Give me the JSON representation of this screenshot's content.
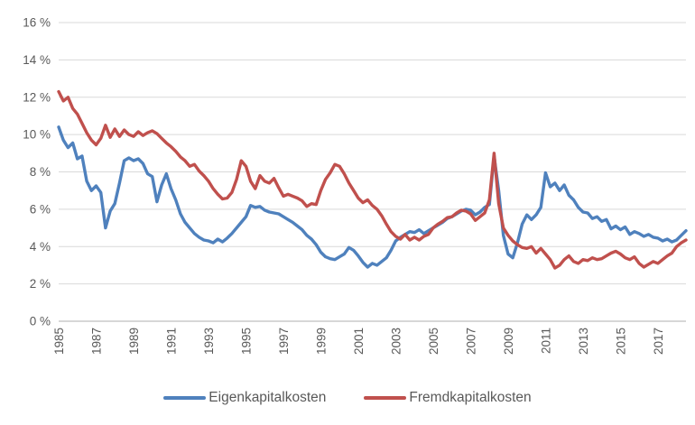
{
  "chart_data": {
    "type": "line",
    "title": "",
    "xlabel": "",
    "ylabel": "",
    "grid": "horizontal",
    "legend_position": "bottom",
    "y_axis": {
      "min": 0,
      "max": 16,
      "step": 2,
      "tick_labels": [
        "0 %",
        "2 %",
        "4 %",
        "6 %",
        "8 %",
        "10 %",
        "12 %",
        "14 %",
        "16 %"
      ]
    },
    "x_axis": {
      "start": 1985.0,
      "step_per_point": 0.25,
      "end": 2018.5,
      "tick_years": [
        1985,
        1987,
        1989,
        1991,
        1993,
        1995,
        1997,
        1999,
        2001,
        2003,
        2005,
        2007,
        2009,
        2011,
        2013,
        2015,
        2017
      ],
      "tick_labels": [
        "1985",
        "1987",
        "1989",
        "1991",
        "1993",
        "1995",
        "1997",
        "1999",
        "2001",
        "2003",
        "2005",
        "2007",
        "2009",
        "2011",
        "2013",
        "2015",
        "2017"
      ]
    },
    "series": [
      {
        "name": "Eigenkapitalkosten",
        "color": "#4F81BD",
        "values": [
          10.4,
          9.7,
          9.3,
          9.55,
          8.7,
          8.85,
          7.5,
          7.0,
          7.25,
          6.9,
          5.0,
          5.9,
          6.3,
          7.4,
          8.6,
          8.75,
          8.6,
          8.7,
          8.45,
          7.9,
          7.75,
          6.4,
          7.3,
          7.9,
          7.1,
          6.5,
          5.75,
          5.3,
          5.0,
          4.7,
          4.5,
          4.35,
          4.3,
          4.2,
          4.4,
          4.25,
          4.45,
          4.7,
          5.0,
          5.3,
          5.6,
          6.2,
          6.1,
          6.15,
          5.95,
          5.85,
          5.8,
          5.75,
          5.6,
          5.45,
          5.3,
          5.1,
          4.9,
          4.6,
          4.4,
          4.1,
          3.7,
          3.45,
          3.35,
          3.3,
          3.45,
          3.6,
          3.95,
          3.8,
          3.5,
          3.15,
          2.9,
          3.1,
          3.0,
          3.2,
          3.4,
          3.8,
          4.3,
          4.5,
          4.65,
          4.8,
          4.75,
          4.9,
          4.7,
          4.85,
          5.0,
          5.15,
          5.3,
          5.5,
          5.6,
          5.75,
          5.9,
          6.0,
          5.95,
          5.7,
          5.85,
          6.1,
          6.25,
          8.85,
          7.0,
          4.6,
          3.6,
          3.4,
          4.2,
          5.2,
          5.7,
          5.45,
          5.7,
          6.1,
          7.95,
          7.2,
          7.4,
          7.0,
          7.3,
          6.75,
          6.5,
          6.1,
          5.85,
          5.8,
          5.5,
          5.6,
          5.35,
          5.45,
          4.95,
          5.1,
          4.9,
          5.05,
          4.65,
          4.8,
          4.7,
          4.55,
          4.65,
          4.5,
          4.45,
          4.3,
          4.4,
          4.25,
          4.35,
          4.6,
          4.85
        ]
      },
      {
        "name": "Fremdkapitalkosten",
        "color": "#C0504D",
        "values": [
          12.3,
          11.8,
          12.0,
          11.4,
          11.1,
          10.6,
          10.1,
          9.7,
          9.45,
          9.8,
          10.5,
          9.85,
          10.3,
          9.9,
          10.25,
          10.0,
          9.9,
          10.15,
          9.95,
          10.1,
          10.2,
          10.05,
          9.8,
          9.55,
          9.35,
          9.1,
          8.8,
          8.6,
          8.3,
          8.4,
          8.05,
          7.8,
          7.5,
          7.1,
          6.8,
          6.55,
          6.6,
          6.9,
          7.6,
          8.6,
          8.3,
          7.5,
          7.1,
          7.8,
          7.5,
          7.4,
          7.65,
          7.15,
          6.7,
          6.8,
          6.7,
          6.6,
          6.45,
          6.15,
          6.3,
          6.25,
          7.0,
          7.6,
          7.95,
          8.4,
          8.3,
          7.9,
          7.4,
          7.0,
          6.6,
          6.35,
          6.5,
          6.2,
          6.0,
          5.65,
          5.2,
          4.8,
          4.55,
          4.4,
          4.65,
          4.35,
          4.5,
          4.35,
          4.55,
          4.65,
          5.0,
          5.2,
          5.35,
          5.55,
          5.6,
          5.8,
          5.95,
          5.9,
          5.75,
          5.4,
          5.6,
          5.8,
          6.5,
          9.0,
          6.3,
          5.0,
          4.6,
          4.3,
          4.1,
          3.95,
          3.9,
          4.0,
          3.65,
          3.9,
          3.6,
          3.3,
          2.85,
          3.0,
          3.3,
          3.5,
          3.2,
          3.1,
          3.3,
          3.25,
          3.4,
          3.3,
          3.35,
          3.5,
          3.65,
          3.75,
          3.6,
          3.4,
          3.3,
          3.45,
          3.1,
          2.9,
          3.05,
          3.2,
          3.1,
          3.3,
          3.5,
          3.65,
          4.0,
          4.2,
          4.35
        ]
      }
    ]
  },
  "legend": {
    "items": [
      {
        "label": "Eigenkapitalkosten",
        "color": "#4F81BD"
      },
      {
        "label": "Fremdkapitalkosten",
        "color": "#C0504D"
      }
    ]
  },
  "colors": {
    "background": "#FFFFFF",
    "gridline": "#D9D9D9",
    "axis_line": "#BFBFBF",
    "axis_text": "#595959"
  }
}
